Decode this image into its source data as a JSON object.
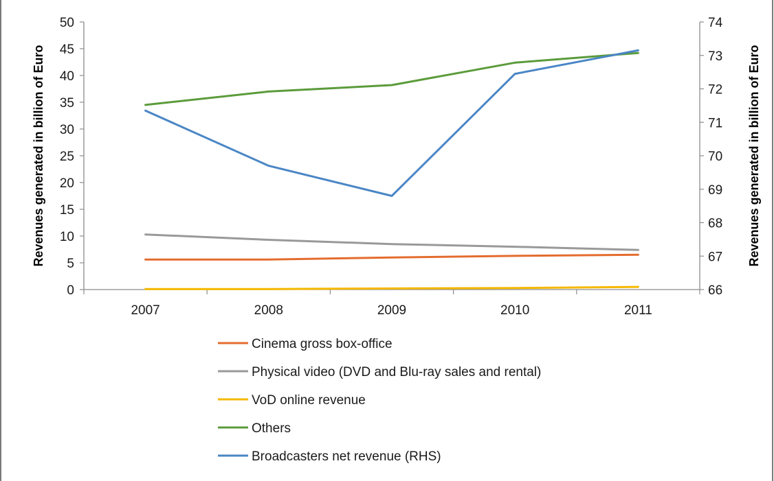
{
  "chart_data": {
    "type": "line",
    "title": "",
    "x": [
      "2007",
      "2008",
      "2009",
      "2010",
      "2011"
    ],
    "y_left": {
      "label": "Revenues generated in billion of Euro",
      "lim": [
        0,
        50
      ],
      "ticks": [
        0,
        5,
        10,
        15,
        20,
        25,
        30,
        35,
        40,
        45,
        50
      ]
    },
    "y_right": {
      "label": "Revenues generated in billion of Euro",
      "lim": [
        66,
        74
      ],
      "ticks": [
        66,
        67,
        68,
        69,
        70,
        71,
        72,
        73,
        74
      ]
    },
    "grid": false,
    "legend_position": "bottom",
    "series": [
      {
        "name": "Cinema gross box-office",
        "axis": "left",
        "color": "#e46c2e",
        "values": [
          5.6,
          5.6,
          6.0,
          6.3,
          6.5
        ]
      },
      {
        "name": "Physical video (DVD and Blu-ray sales and rental)",
        "axis": "left",
        "color": "#999999",
        "values": [
          10.3,
          9.3,
          8.5,
          8.0,
          7.4
        ]
      },
      {
        "name": "VoD online revenue",
        "axis": "left",
        "color": "#f5b800",
        "values": [
          0.1,
          0.1,
          0.2,
          0.3,
          0.5
        ]
      },
      {
        "name": "Others",
        "axis": "left",
        "color": "#5b9b3b",
        "values": [
          34.5,
          37.0,
          38.2,
          42.4,
          44.2
        ]
      },
      {
        "name": "Broadcasters net revenue (RHS)",
        "axis": "right",
        "color": "#4a86c5",
        "values": [
          71.35,
          69.7,
          68.8,
          72.45,
          73.15
        ]
      }
    ]
  }
}
